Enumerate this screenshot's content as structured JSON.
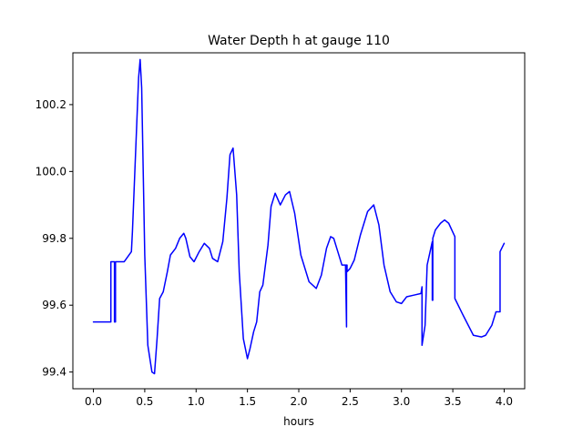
{
  "chart_data": {
    "type": "line",
    "title": "Water Depth h at gauge 110",
    "xlabel": "hours",
    "ylabel": "",
    "xlim": [
      -0.2,
      4.2
    ],
    "ylim": [
      99.35,
      100.355
    ],
    "x_ticks": [
      0.0,
      0.5,
      1.0,
      1.5,
      2.0,
      2.5,
      3.0,
      3.5,
      4.0
    ],
    "x_tick_labels": [
      "0.0",
      "0.5",
      "1.0",
      "1.5",
      "2.0",
      "2.5",
      "3.0",
      "3.5",
      "4.0"
    ],
    "y_ticks": [
      99.4,
      99.6,
      99.8,
      100.0,
      100.2
    ],
    "y_tick_labels": [
      "99.4",
      "99.6",
      "99.8",
      "100.0",
      "100.2"
    ],
    "grid": false,
    "legend": "none",
    "series": [
      {
        "color": "#0000ff",
        "x": [
          0.0,
          0.17,
          0.17,
          0.205,
          0.205,
          0.215,
          0.215,
          0.225,
          0.225,
          0.3,
          0.37,
          0.38,
          0.41,
          0.44,
          0.455,
          0.47,
          0.5,
          0.53,
          0.57,
          0.595,
          0.62,
          0.645,
          0.68,
          0.72,
          0.75,
          0.8,
          0.84,
          0.88,
          0.9,
          0.94,
          0.98,
          1.03,
          1.08,
          1.13,
          1.16,
          1.21,
          1.26,
          1.3,
          1.33,
          1.36,
          1.395,
          1.42,
          1.46,
          1.5,
          1.525,
          1.56,
          1.59,
          1.62,
          1.65,
          1.7,
          1.73,
          1.77,
          1.82,
          1.87,
          1.91,
          1.96,
          2.02,
          2.1,
          2.17,
          2.22,
          2.27,
          2.31,
          2.34,
          2.38,
          2.42,
          2.455,
          2.465,
          2.465,
          2.47,
          2.47,
          2.5,
          2.54,
          2.6,
          2.67,
          2.73,
          2.78,
          2.83,
          2.89,
          2.95,
          3.0,
          3.05,
          3.12,
          3.19,
          3.2,
          3.2,
          3.2,
          3.23,
          3.25,
          3.25,
          3.3,
          3.3,
          3.305,
          3.305,
          3.33,
          3.38,
          3.42,
          3.46,
          3.52,
          3.52,
          3.6,
          3.7,
          3.78,
          3.82,
          3.88,
          3.92,
          3.96,
          3.96,
          4.0
        ],
        "y": [
          99.55,
          99.55,
          99.73,
          99.73,
          99.55,
          99.55,
          99.73,
          99.73,
          99.73,
          99.73,
          99.76,
          99.82,
          100.05,
          100.28,
          100.335,
          100.25,
          99.75,
          99.48,
          99.4,
          99.395,
          99.5,
          99.62,
          99.64,
          99.7,
          99.75,
          99.77,
          99.8,
          99.815,
          99.8,
          99.745,
          99.73,
          99.76,
          99.785,
          99.77,
          99.74,
          99.73,
          99.79,
          99.92,
          100.05,
          100.07,
          99.93,
          99.7,
          99.5,
          99.44,
          99.47,
          99.52,
          99.55,
          99.64,
          99.66,
          99.78,
          99.895,
          99.935,
          99.9,
          99.93,
          99.94,
          99.875,
          99.75,
          99.67,
          99.65,
          99.69,
          99.77,
          99.805,
          99.8,
          99.76,
          99.72,
          99.72,
          99.535,
          99.72,
          99.72,
          99.7,
          99.71,
          99.735,
          99.81,
          99.88,
          99.9,
          99.84,
          99.72,
          99.64,
          99.61,
          99.605,
          99.625,
          99.63,
          99.635,
          99.655,
          99.48,
          99.48,
          99.54,
          99.72,
          99.72,
          99.79,
          99.615,
          99.615,
          99.8,
          99.825,
          99.845,
          99.855,
          99.845,
          99.805,
          99.62,
          99.57,
          99.51,
          99.505,
          99.51,
          99.54,
          99.58,
          99.58,
          99.76,
          99.785
        ]
      }
    ]
  }
}
